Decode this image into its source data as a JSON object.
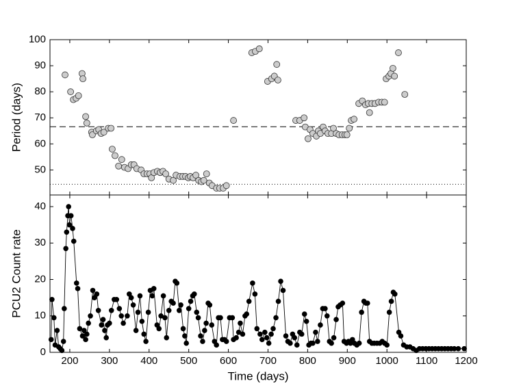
{
  "chart_data": [
    {
      "type": "scatter",
      "ylabel": "Period (days)",
      "x": [
        188,
        202,
        209,
        216,
        222,
        231,
        233,
        240,
        243,
        255,
        257,
        267,
        273,
        279,
        286,
        297,
        304,
        307,
        314,
        323,
        331,
        338,
        347,
        355,
        362,
        369,
        380,
        387,
        395,
        402,
        406,
        412,
        421,
        428,
        435,
        442,
        450,
        461,
        468,
        478,
        485,
        492,
        499,
        504,
        511,
        518,
        525,
        532,
        538,
        545,
        552,
        559,
        570,
        578,
        587,
        595,
        613,
        659,
        668,
        678,
        699,
        709,
        716,
        722,
        725,
        770,
        780,
        791,
        794,
        801,
        806,
        813,
        822,
        827,
        832,
        839,
        844,
        851,
        860,
        865,
        872,
        879,
        887,
        894,
        899,
        905,
        910,
        917,
        929,
        938,
        946,
        953,
        956,
        962,
        970,
        979,
        987,
        994,
        998,
        1005,
        1010,
        1015,
        1019,
        1029,
        1045
      ],
      "y": [
        86.5,
        80,
        77,
        77.5,
        78.5,
        87,
        85,
        70.5,
        68,
        64.5,
        63.5,
        65,
        65.5,
        64,
        64.5,
        66,
        66,
        58,
        55.5,
        51.5,
        54,
        51,
        50.5,
        52,
        52,
        50.5,
        50,
        48.5,
        48.5,
        48.5,
        47,
        49,
        49.5,
        49,
        49.5,
        48.5,
        46.5,
        46,
        48,
        47.5,
        47.5,
        47.5,
        47,
        47.5,
        47,
        48,
        46,
        45.5,
        46,
        48.5,
        45,
        44,
        43,
        43,
        43,
        44,
        69,
        95,
        95.5,
        96.5,
        84,
        85,
        86,
        90.5,
        84.5,
        69,
        69,
        70,
        66.5,
        62,
        65.5,
        64,
        63,
        65,
        64,
        66.5,
        65,
        64,
        64,
        66,
        64,
        63.5,
        63.5,
        63.5,
        63.5,
        66,
        69,
        69.5,
        75.5,
        76.5,
        75,
        75.5,
        72,
        75.5,
        75.5,
        76,
        76,
        76,
        85,
        86,
        87,
        89,
        86,
        95,
        79
      ],
      "color": "#cccccc",
      "xlim": [
        150,
        1200
      ],
      "xticks": [
        200,
        300,
        400,
        500,
        600,
        700,
        800,
        900,
        1000,
        1100,
        1200
      ],
      "ylim": [
        40.4,
        100
      ],
      "yticks": [
        50,
        60,
        70,
        80,
        90,
        100
      ],
      "reference_lines": [
        {
          "value": 66.6,
          "style": "dashed"
        },
        {
          "value": 44.5,
          "style": "dotted"
        }
      ]
    },
    {
      "type": "line",
      "xlabel": "Time (days)",
      "ylabel": "PCU2 Count rate",
      "x": [
        153,
        155,
        160,
        163,
        168,
        172,
        176,
        180,
        184,
        186,
        190,
        192,
        195,
        197,
        199,
        203,
        207,
        210,
        217,
        220,
        225,
        232,
        236,
        240,
        243,
        247,
        252,
        258,
        262,
        268,
        272,
        280,
        284,
        288,
        292,
        295,
        300,
        305,
        312,
        318,
        325,
        330,
        335,
        345,
        350,
        355,
        360,
        367,
        372,
        377,
        382,
        387,
        392,
        398,
        403,
        408,
        412,
        420,
        425,
        430,
        436,
        440,
        444,
        450,
        456,
        461,
        466,
        470,
        476,
        480,
        486,
        490,
        494,
        500,
        505,
        510,
        514,
        520,
        524,
        530,
        535,
        540,
        544,
        549,
        553,
        558,
        565,
        570,
        575,
        580,
        585,
        590,
        595,
        603,
        610,
        613,
        620,
        626,
        630,
        636,
        642,
        646,
        652,
        661,
        667,
        672,
        680,
        685,
        692,
        697,
        702,
        708,
        713,
        720,
        726,
        732,
        738,
        745,
        750,
        756,
        762,
        767,
        773,
        780,
        785,
        792,
        797,
        803,
        808,
        813,
        820,
        825,
        832,
        838,
        844,
        849,
        855,
        860,
        866,
        872,
        877,
        882,
        888,
        892,
        898,
        903,
        908,
        913,
        918,
        924,
        930,
        936,
        942,
        947,
        951,
        956,
        962,
        968,
        975,
        982,
        988,
        994,
        1000,
        1006,
        1011,
        1016,
        1020,
        1030,
        1035,
        1042,
        1050,
        1058,
        1066,
        1074,
        1082,
        1090,
        1098,
        1106,
        1114,
        1122,
        1130,
        1138,
        1146,
        1154,
        1162,
        1170,
        1180,
        1195
      ],
      "y": [
        3.5,
        14.5,
        9.5,
        2,
        6,
        1.5,
        1,
        0.5,
        3,
        12,
        28.5,
        33,
        37.5,
        40,
        35,
        37.5,
        34,
        30.5,
        19,
        17.5,
        6.5,
        4.5,
        6,
        3.5,
        5,
        8,
        10,
        17,
        15,
        16,
        11.5,
        7.5,
        9,
        6,
        4,
        7.5,
        8,
        11.5,
        14.5,
        14.5,
        12,
        10,
        8,
        10,
        16,
        15,
        13,
        6,
        11,
        15.5,
        8.5,
        5,
        3,
        11,
        17,
        15.5,
        17.5,
        7.5,
        6.5,
        10,
        15.5,
        9.5,
        4,
        11.5,
        14,
        13.5,
        19.5,
        19,
        11.5,
        13,
        6.5,
        4.5,
        2.5,
        12,
        14,
        15.5,
        16,
        11,
        9.5,
        4.5,
        3,
        6,
        8,
        13.5,
        13,
        7.5,
        3,
        2,
        9.5,
        9.5,
        3.5,
        3.5,
        3,
        9.5,
        9.5,
        3.5,
        4,
        5.5,
        8,
        5,
        10,
        10.5,
        14,
        19,
        16,
        6.5,
        5,
        3.5,
        5.5,
        4,
        2.5,
        5,
        6.5,
        9.5,
        14,
        19.5,
        17,
        4.5,
        3,
        2.5,
        5,
        4,
        2,
        5.5,
        5,
        10.5,
        8.5,
        2,
        2.5,
        2.5,
        5.5,
        3,
        7.5,
        12,
        12,
        10,
        3,
        2.5,
        4,
        9,
        12.5,
        13,
        13.5,
        3,
        2.5,
        3,
        2.5,
        3.5,
        2.5,
        2,
        2.5,
        11,
        14,
        13.5,
        13.5,
        3,
        2.5,
        2.5,
        2.5,
        2.5,
        3,
        2.5,
        2,
        11,
        14,
        16.5,
        16,
        5.5,
        4.5,
        2,
        1.5,
        1.5,
        1,
        0.5,
        1,
        1,
        1,
        1,
        1,
        1,
        1,
        1,
        1,
        1,
        1,
        1,
        1,
        1
      ],
      "color": "#000000",
      "xlim": [
        150,
        1200
      ],
      "xticks": [
        200,
        300,
        400,
        500,
        600,
        700,
        800,
        900,
        1000,
        1100,
        1200
      ],
      "ylim": [
        0,
        43.2
      ],
      "yticks": [
        0,
        10,
        20,
        30,
        40
      ]
    }
  ]
}
